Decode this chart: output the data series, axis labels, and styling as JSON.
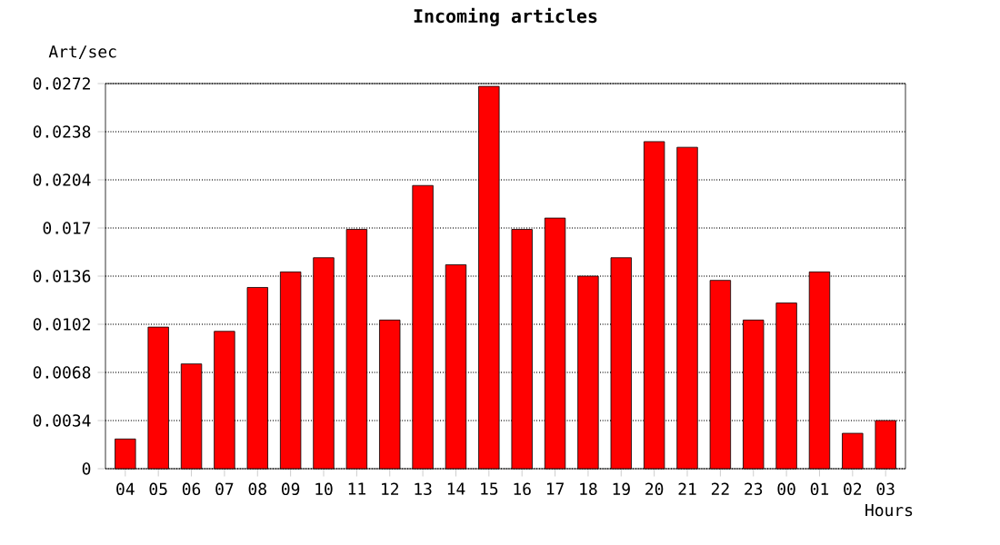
{
  "chart_data": {
    "type": "bar",
    "title": "Incoming articles",
    "xlabel": "Hours",
    "ylabel": "Art/sec",
    "categories": [
      "04",
      "05",
      "06",
      "07",
      "08",
      "09",
      "10",
      "11",
      "12",
      "13",
      "14",
      "15",
      "16",
      "17",
      "18",
      "19",
      "20",
      "21",
      "22",
      "23",
      "00",
      "01",
      "02",
      "03"
    ],
    "values": [
      0.0021,
      0.01,
      0.0074,
      0.0097,
      0.0128,
      0.0139,
      0.0149,
      0.0169,
      0.0105,
      0.02,
      0.0144,
      0.027,
      0.0169,
      0.0177,
      0.0136,
      0.0149,
      0.0231,
      0.0227,
      0.0133,
      0.0105,
      0.0117,
      0.0139,
      0.0025,
      0.0034
    ],
    "color": "#ff0000",
    "ylim": [
      0,
      0.0272
    ],
    "yticks": [
      0,
      0.0034,
      0.0068,
      0.0102,
      0.0136,
      0.017,
      0.0204,
      0.0238,
      0.0272
    ],
    "grid": "y"
  }
}
